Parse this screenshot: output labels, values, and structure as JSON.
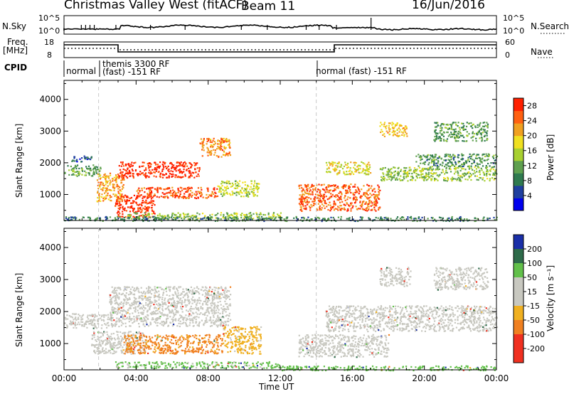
{
  "header": {
    "station": "Christmas Valley West (fitACF)",
    "beam": "Beam 11",
    "date": "16/Jun/2016"
  },
  "strip_labels": {
    "nsky": "N.Sky",
    "nsky_top": "10^5",
    "nsky_bottom": "10^0",
    "nsearch": "N.Search",
    "nsearch_top": "10^5",
    "nsearch_bottom": "10^0",
    "freq": "Freq.",
    "freq_unit": "[MHz]",
    "freq_top": "18",
    "freq_bottom": "8",
    "nave": "Nave",
    "nave_top": "60",
    "nave_bottom": "0",
    "cpid": "CPID"
  },
  "cpid_segments": [
    {
      "text": "normal"
    },
    {
      "text": "themis 3300 RF"
    },
    {
      "text": "(fast) -151 RF"
    },
    {
      "text": "normal (fast) -151 RF"
    }
  ],
  "time_axis": {
    "title": "Time UT",
    "ticks": [
      "00:00",
      "04:00",
      "08:00",
      "12:00",
      "16:00",
      "20:00",
      "00:00"
    ]
  },
  "chart_data": [
    {
      "type": "heatmap",
      "title": "",
      "xlabel": "Time UT",
      "ylabel": "Slant Range [km]",
      "xlim": [
        0,
        24
      ],
      "ylim": [
        180,
        4600
      ],
      "yticks": [
        "1000",
        "2000",
        "3000",
        "4000"
      ],
      "colorbar": {
        "label": "Power [dB]",
        "ticks": [
          "4",
          "8",
          "12",
          "16",
          "20",
          "24",
          "28"
        ],
        "range": [
          0,
          30
        ]
      },
      "regions": [
        {
          "t0": 0.0,
          "t1": 2.0,
          "r0": 1600,
          "r1": 1950,
          "value": 11
        },
        {
          "t0": 0.4,
          "t1": 1.5,
          "r0": 2050,
          "r1": 2250,
          "value": 6
        },
        {
          "t0": 1.8,
          "t1": 3.3,
          "r0": 800,
          "r1": 1700,
          "value": 22
        },
        {
          "t0": 2.8,
          "t1": 5.0,
          "r0": 300,
          "r1": 1000,
          "value": 28
        },
        {
          "t0": 3.0,
          "t1": 7.5,
          "r0": 1550,
          "r1": 2050,
          "value": 29
        },
        {
          "t0": 7.5,
          "t1": 9.2,
          "r0": 2200,
          "r1": 2800,
          "value": 23
        },
        {
          "t0": 4.0,
          "t1": 8.5,
          "r0": 900,
          "r1": 1250,
          "value": 26
        },
        {
          "t0": 8.5,
          "t1": 10.8,
          "r0": 950,
          "r1": 1450,
          "value": 16
        },
        {
          "t0": 3.5,
          "t1": 12.0,
          "r0": 250,
          "r1": 450,
          "value": 14
        },
        {
          "t0": 13.0,
          "t1": 17.5,
          "r0": 500,
          "r1": 1350,
          "value": 25
        },
        {
          "t0": 14.5,
          "t1": 17.0,
          "r0": 1650,
          "r1": 2050,
          "value": 18
        },
        {
          "t0": 17.5,
          "t1": 24.0,
          "r0": 1450,
          "r1": 1900,
          "value": 14
        },
        {
          "t0": 19.5,
          "t1": 24.0,
          "r0": 1900,
          "r1": 2300,
          "value": 10
        },
        {
          "t0": 17.5,
          "t1": 19.0,
          "r0": 2850,
          "r1": 3300,
          "value": 20
        },
        {
          "t0": 20.5,
          "t1": 23.5,
          "r0": 2700,
          "r1": 3300,
          "value": 11
        },
        {
          "t0": 0.0,
          "t1": 24.0,
          "r0": 180,
          "r1": 320,
          "value": 9
        }
      ]
    },
    {
      "type": "heatmap",
      "title": "",
      "xlabel": "Time UT",
      "ylabel": "Slant Range [km]",
      "xlim": [
        0,
        24
      ],
      "ylim": [
        180,
        4600
      ],
      "yticks": [
        "1000",
        "2000",
        "3000",
        "4000"
      ],
      "colorbar": {
        "label": "Velocity [m s⁻¹]",
        "ticks": [
          "200",
          "100",
          "50",
          "15",
          "-15",
          "-50",
          "-100",
          "-200"
        ]
      },
      "regions": [
        {
          "t0": 0.0,
          "t1": 2.5,
          "r0": 1500,
          "r1": 1950,
          "value": 0
        },
        {
          "t0": 2.5,
          "t1": 9.2,
          "r0": 1550,
          "r1": 2800,
          "value": 0
        },
        {
          "t0": 1.5,
          "t1": 4.5,
          "r0": 700,
          "r1": 1400,
          "value": 0
        },
        {
          "t0": 3.3,
          "t1": 8.8,
          "r0": 700,
          "r1": 1300,
          "value": -60
        },
        {
          "t0": 8.8,
          "t1": 10.9,
          "r0": 700,
          "r1": 1550,
          "value": -25
        },
        {
          "t0": 2.8,
          "t1": 12.0,
          "r0": 250,
          "r1": 450,
          "value": 25
        },
        {
          "t0": 13.0,
          "t1": 18.0,
          "r0": 600,
          "r1": 1300,
          "value": 0
        },
        {
          "t0": 14.5,
          "t1": 24.0,
          "r0": 1400,
          "r1": 2200,
          "value": 0
        },
        {
          "t0": 17.5,
          "t1": 19.2,
          "r0": 2800,
          "r1": 3400,
          "value": 0
        },
        {
          "t0": 20.5,
          "t1": 23.5,
          "r0": 2700,
          "r1": 3400,
          "value": 0
        },
        {
          "t0": 12.0,
          "t1": 24.0,
          "r0": 180,
          "r1": 320,
          "value": 30
        }
      ]
    }
  ],
  "palette": {
    "power": [
      "#0000ee",
      "#1f3f9f",
      "#2f7a4f",
      "#5fa04f",
      "#a8d030",
      "#f0e020",
      "#f0a020",
      "#ff6010",
      "#ff2000"
    ],
    "velocity": {
      "pos_high": "#1a2fa8",
      "pos_mid": "#2e6b4a",
      "pos_low": "#62c04a",
      "zero": "#c8c8c0",
      "neg_low": "#f0b020",
      "neg_mid": "#f08020",
      "neg_high": "#f03020"
    }
  }
}
